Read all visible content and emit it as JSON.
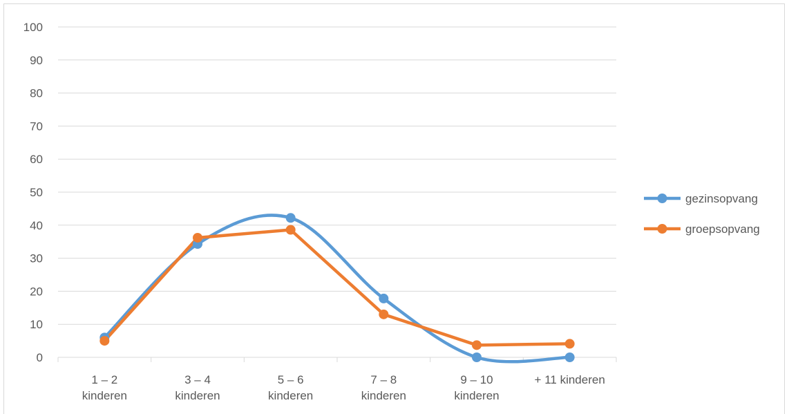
{
  "chart_data": {
    "type": "line",
    "title": "",
    "xlabel": "",
    "ylabel": "",
    "categories": [
      [
        "1 – 2",
        "kinderen"
      ],
      [
        "3 – 4",
        "kinderen"
      ],
      [
        "5 – 6",
        "kinderen"
      ],
      [
        "7 – 8",
        "kinderen"
      ],
      [
        "9 – 10",
        "kinderen"
      ],
      [
        "+ 11 kinderen"
      ]
    ],
    "ylim": [
      0,
      100
    ],
    "yticks": [
      0,
      10,
      20,
      30,
      40,
      50,
      60,
      70,
      80,
      90,
      100
    ],
    "grid": true,
    "legend_position": "right",
    "series": [
      {
        "name": "gezinsopvang",
        "color": "#5b9bd5",
        "smooth": true,
        "values": [
          6,
          34.3,
          42.2,
          17.8,
          0,
          0
        ]
      },
      {
        "name": "groepsopvang",
        "color": "#ed7d31",
        "smooth": false,
        "values": [
          5,
          36.2,
          38.6,
          13,
          3.7,
          4.1
        ]
      }
    ]
  }
}
